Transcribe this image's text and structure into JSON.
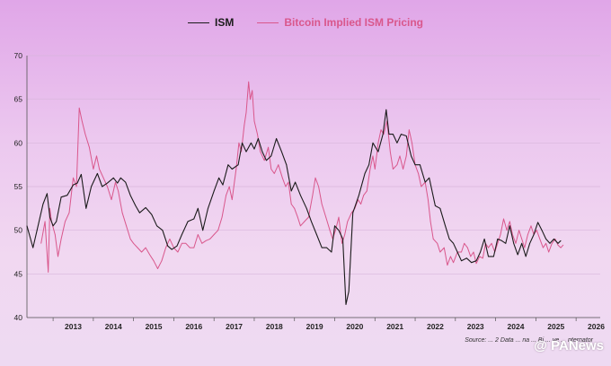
{
  "legend": {
    "ism_label": "ISM",
    "btc_label": "Bitcoin Implied ISM Pricing"
  },
  "source": "Source: ... 2 Data ... na ... Bi ... ve ... nternator",
  "watermark": "@ PANews",
  "chart_data": {
    "type": "line",
    "title": "",
    "xlabel": "",
    "ylabel": "",
    "xlim": [
      2012.35,
      2026.6
    ],
    "ylim": [
      40,
      70
    ],
    "yticks": [
      40,
      45,
      50,
      55,
      60,
      65,
      70
    ],
    "xtick_labels": [
      "2013",
      "2014",
      "2015",
      "2016",
      "2017",
      "2018",
      "2019",
      "2020",
      "2021",
      "2022",
      "2023",
      "2024",
      "2025",
      "2026"
    ],
    "grid": "horizontal",
    "legend_position": "top",
    "colors": {
      "ISM": "#1b1b1b",
      "Bitcoin Implied ISM Pricing": "#d9578c"
    },
    "series": [
      {
        "name": "ISM",
        "points": [
          [
            2012.35,
            50.5
          ],
          [
            2012.5,
            48.0
          ],
          [
            2012.6,
            50.0
          ],
          [
            2012.75,
            53.0
          ],
          [
            2012.85,
            54.2
          ],
          [
            2012.92,
            51.5
          ],
          [
            2013.0,
            50.5
          ],
          [
            2013.08,
            51.0
          ],
          [
            2013.2,
            53.8
          ],
          [
            2013.35,
            54.0
          ],
          [
            2013.5,
            55.2
          ],
          [
            2013.6,
            55.4
          ],
          [
            2013.7,
            56.4
          ],
          [
            2013.82,
            52.5
          ],
          [
            2013.95,
            55.0
          ],
          [
            2014.1,
            56.5
          ],
          [
            2014.22,
            55.0
          ],
          [
            2014.35,
            55.4
          ],
          [
            2014.5,
            56.0
          ],
          [
            2014.6,
            55.4
          ],
          [
            2014.68,
            56.0
          ],
          [
            2014.8,
            55.5
          ],
          [
            2014.92,
            54.0
          ],
          [
            2015.05,
            52.8
          ],
          [
            2015.15,
            52.0
          ],
          [
            2015.3,
            52.6
          ],
          [
            2015.45,
            51.8
          ],
          [
            2015.58,
            50.5
          ],
          [
            2015.72,
            50.0
          ],
          [
            2015.85,
            48.2
          ],
          [
            2015.95,
            47.8
          ],
          [
            2016.08,
            48.2
          ],
          [
            2016.2,
            49.5
          ],
          [
            2016.35,
            51.0
          ],
          [
            2016.5,
            51.3
          ],
          [
            2016.6,
            52.5
          ],
          [
            2016.72,
            50.0
          ],
          [
            2016.85,
            52.5
          ],
          [
            2017.0,
            54.5
          ],
          [
            2017.12,
            56.0
          ],
          [
            2017.22,
            55.2
          ],
          [
            2017.35,
            57.5
          ],
          [
            2017.45,
            57.0
          ],
          [
            2017.6,
            57.5
          ],
          [
            2017.7,
            60.0
          ],
          [
            2017.8,
            59.0
          ],
          [
            2017.92,
            60.0
          ],
          [
            2018.0,
            59.3
          ],
          [
            2018.1,
            60.5
          ],
          [
            2018.2,
            59.0
          ],
          [
            2018.3,
            58.0
          ],
          [
            2018.42,
            58.5
          ],
          [
            2018.55,
            60.5
          ],
          [
            2018.68,
            59.0
          ],
          [
            2018.8,
            57.5
          ],
          [
            2018.92,
            54.5
          ],
          [
            2019.02,
            55.5
          ],
          [
            2019.15,
            54.0
          ],
          [
            2019.3,
            52.5
          ],
          [
            2019.42,
            51.0
          ],
          [
            2019.55,
            49.5
          ],
          [
            2019.68,
            48.0
          ],
          [
            2019.8,
            48.0
          ],
          [
            2019.92,
            47.5
          ],
          [
            2020.0,
            50.5
          ],
          [
            2020.1,
            50.0
          ],
          [
            2020.2,
            49.0
          ],
          [
            2020.28,
            41.5
          ],
          [
            2020.35,
            43.0
          ],
          [
            2020.45,
            52.0
          ],
          [
            2020.6,
            54.0
          ],
          [
            2020.75,
            56.5
          ],
          [
            2020.85,
            57.5
          ],
          [
            2020.95,
            60.0
          ],
          [
            2021.08,
            59.0
          ],
          [
            2021.2,
            61.0
          ],
          [
            2021.28,
            63.8
          ],
          [
            2021.35,
            61.0
          ],
          [
            2021.45,
            61.0
          ],
          [
            2021.55,
            60.0
          ],
          [
            2021.65,
            61.0
          ],
          [
            2021.78,
            60.8
          ],
          [
            2021.9,
            58.5
          ],
          [
            2022.0,
            57.5
          ],
          [
            2022.12,
            57.5
          ],
          [
            2022.25,
            55.5
          ],
          [
            2022.35,
            56.0
          ],
          [
            2022.5,
            52.8
          ],
          [
            2022.62,
            52.5
          ],
          [
            2022.75,
            50.5
          ],
          [
            2022.85,
            49.0
          ],
          [
            2022.95,
            48.5
          ],
          [
            2023.05,
            47.5
          ],
          [
            2023.15,
            46.5
          ],
          [
            2023.28,
            46.8
          ],
          [
            2023.4,
            46.3
          ],
          [
            2023.52,
            46.5
          ],
          [
            2023.62,
            47.5
          ],
          [
            2023.72,
            49.0
          ],
          [
            2023.82,
            47.0
          ],
          [
            2023.95,
            47.0
          ],
          [
            2024.05,
            49.0
          ],
          [
            2024.15,
            48.8
          ],
          [
            2024.25,
            48.5
          ],
          [
            2024.35,
            50.5
          ],
          [
            2024.45,
            48.5
          ],
          [
            2024.55,
            47.2
          ],
          [
            2024.65,
            48.5
          ],
          [
            2024.75,
            47.0
          ],
          [
            2024.85,
            48.5
          ],
          [
            2024.95,
            49.5
          ],
          [
            2025.05,
            50.9
          ],
          [
            2025.15,
            50.0
          ],
          [
            2025.25,
            49.0
          ],
          [
            2025.35,
            48.5
          ],
          [
            2025.45,
            49.0
          ],
          [
            2025.55,
            48.5
          ],
          [
            2025.62,
            48.8
          ]
        ]
      },
      {
        "name": "Bitcoin Implied ISM Pricing",
        "points": [
          [
            2012.7,
            48.5
          ],
          [
            2012.8,
            51.0
          ],
          [
            2012.88,
            45.2
          ],
          [
            2012.92,
            52.5
          ],
          [
            2012.96,
            51.0
          ],
          [
            2013.05,
            49.5
          ],
          [
            2013.12,
            47.0
          ],
          [
            2013.2,
            49.0
          ],
          [
            2013.3,
            51.0
          ],
          [
            2013.4,
            52.0
          ],
          [
            2013.5,
            56.0
          ],
          [
            2013.58,
            55.0
          ],
          [
            2013.65,
            64.0
          ],
          [
            2013.72,
            62.5
          ],
          [
            2013.8,
            61.0
          ],
          [
            2013.9,
            59.5
          ],
          [
            2014.0,
            57.0
          ],
          [
            2014.08,
            58.5
          ],
          [
            2014.15,
            57.0
          ],
          [
            2014.25,
            56.0
          ],
          [
            2014.35,
            55.0
          ],
          [
            2014.45,
            53.5
          ],
          [
            2014.55,
            55.5
          ],
          [
            2014.62,
            54.5
          ],
          [
            2014.72,
            52.0
          ],
          [
            2014.82,
            50.5
          ],
          [
            2014.92,
            49.0
          ],
          [
            2015.0,
            48.5
          ],
          [
            2015.1,
            48.0
          ],
          [
            2015.2,
            47.5
          ],
          [
            2015.3,
            48.0
          ],
          [
            2015.4,
            47.2
          ],
          [
            2015.5,
            46.5
          ],
          [
            2015.6,
            45.6
          ],
          [
            2015.7,
            46.5
          ],
          [
            2015.8,
            48.0
          ],
          [
            2015.9,
            49.0
          ],
          [
            2016.0,
            48.0
          ],
          [
            2016.1,
            47.5
          ],
          [
            2016.2,
            48.5
          ],
          [
            2016.3,
            48.5
          ],
          [
            2016.4,
            48.0
          ],
          [
            2016.5,
            48.0
          ],
          [
            2016.6,
            49.5
          ],
          [
            2016.7,
            48.5
          ],
          [
            2016.8,
            48.8
          ],
          [
            2016.9,
            49.0
          ],
          [
            2017.0,
            49.5
          ],
          [
            2017.1,
            50.0
          ],
          [
            2017.2,
            51.5
          ],
          [
            2017.3,
            54.0
          ],
          [
            2017.38,
            55.0
          ],
          [
            2017.45,
            53.5
          ],
          [
            2017.55,
            57.0
          ],
          [
            2017.62,
            60.0
          ],
          [
            2017.68,
            59.0
          ],
          [
            2017.75,
            62.0
          ],
          [
            2017.8,
            63.5
          ],
          [
            2017.86,
            67.0
          ],
          [
            2017.9,
            65.0
          ],
          [
            2017.95,
            66.0
          ],
          [
            2018.0,
            62.5
          ],
          [
            2018.08,
            61.0
          ],
          [
            2018.15,
            59.0
          ],
          [
            2018.25,
            58.0
          ],
          [
            2018.35,
            59.5
          ],
          [
            2018.42,
            57.0
          ],
          [
            2018.5,
            56.5
          ],
          [
            2018.6,
            57.5
          ],
          [
            2018.7,
            56.0
          ],
          [
            2018.78,
            55.0
          ],
          [
            2018.85,
            55.5
          ],
          [
            2018.92,
            53.0
          ],
          [
            2019.0,
            52.5
          ],
          [
            2019.08,
            51.5
          ],
          [
            2019.15,
            50.5
          ],
          [
            2019.25,
            51.0
          ],
          [
            2019.35,
            51.5
          ],
          [
            2019.45,
            54.0
          ],
          [
            2019.52,
            56.0
          ],
          [
            2019.6,
            55.0
          ],
          [
            2019.68,
            53.0
          ],
          [
            2019.78,
            51.5
          ],
          [
            2019.88,
            50.0
          ],
          [
            2019.95,
            49.0
          ],
          [
            2020.02,
            50.0
          ],
          [
            2020.1,
            51.5
          ],
          [
            2020.18,
            48.5
          ],
          [
            2020.25,
            49.5
          ],
          [
            2020.32,
            51.0
          ],
          [
            2020.42,
            52.0
          ],
          [
            2020.5,
            52.5
          ],
          [
            2020.58,
            53.5
          ],
          [
            2020.65,
            53.0
          ],
          [
            2020.72,
            54.0
          ],
          [
            2020.8,
            54.5
          ],
          [
            2020.88,
            57.0
          ],
          [
            2020.95,
            58.5
          ],
          [
            2021.0,
            57.0
          ],
          [
            2021.08,
            60.0
          ],
          [
            2021.15,
            61.5
          ],
          [
            2021.22,
            61.0
          ],
          [
            2021.3,
            62.5
          ],
          [
            2021.38,
            59.0
          ],
          [
            2021.45,
            57.0
          ],
          [
            2021.55,
            57.5
          ],
          [
            2021.62,
            58.5
          ],
          [
            2021.7,
            57.0
          ],
          [
            2021.78,
            58.5
          ],
          [
            2021.85,
            61.5
          ],
          [
            2021.92,
            60.0
          ],
          [
            2022.0,
            57.5
          ],
          [
            2022.08,
            56.5
          ],
          [
            2022.15,
            55.0
          ],
          [
            2022.25,
            55.5
          ],
          [
            2022.32,
            53.5
          ],
          [
            2022.38,
            51.0
          ],
          [
            2022.45,
            49.0
          ],
          [
            2022.55,
            48.5
          ],
          [
            2022.62,
            47.5
          ],
          [
            2022.72,
            48.0
          ],
          [
            2022.8,
            46.0
          ],
          [
            2022.88,
            47.0
          ],
          [
            2022.95,
            46.3
          ],
          [
            2023.05,
            47.5
          ],
          [
            2023.15,
            47.5
          ],
          [
            2023.22,
            48.5
          ],
          [
            2023.3,
            48.0
          ],
          [
            2023.38,
            47.0
          ],
          [
            2023.45,
            47.5
          ],
          [
            2023.52,
            46.2
          ],
          [
            2023.6,
            47.0
          ],
          [
            2023.68,
            46.8
          ],
          [
            2023.75,
            48.5
          ],
          [
            2023.82,
            48.0
          ],
          [
            2023.9,
            48.5
          ],
          [
            2023.98,
            47.5
          ],
          [
            2024.05,
            48.5
          ],
          [
            2024.12,
            49.5
          ],
          [
            2024.2,
            51.3
          ],
          [
            2024.28,
            50.0
          ],
          [
            2024.35,
            51.0
          ],
          [
            2024.42,
            49.5
          ],
          [
            2024.5,
            48.5
          ],
          [
            2024.58,
            50.0
          ],
          [
            2024.65,
            49.0
          ],
          [
            2024.72,
            48.0
          ],
          [
            2024.8,
            49.5
          ],
          [
            2024.88,
            50.5
          ],
          [
            2024.95,
            49.5
          ],
          [
            2025.02,
            50.0
          ],
          [
            2025.1,
            49.0
          ],
          [
            2025.18,
            48.0
          ],
          [
            2025.25,
            48.5
          ],
          [
            2025.32,
            47.5
          ],
          [
            2025.4,
            48.5
          ],
          [
            2025.48,
            49.0
          ],
          [
            2025.55,
            48.3
          ],
          [
            2025.62,
            48.0
          ],
          [
            2025.68,
            48.3
          ]
        ]
      }
    ]
  }
}
